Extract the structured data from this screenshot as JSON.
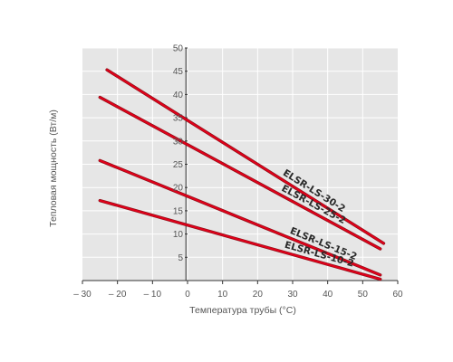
{
  "chart_data": {
    "type": "line",
    "title": "",
    "xlabel": "Температура трубы (°C)",
    "ylabel": "Тепловая мощность (Вт/м)",
    "xlim": [
      -30,
      60
    ],
    "ylim": [
      0,
      50
    ],
    "xticks": [
      -30,
      -20,
      -10,
      0,
      10,
      20,
      30,
      40,
      50,
      60
    ],
    "xtick_labels": [
      "– 30",
      "– 20",
      "– 10",
      "0",
      "10",
      "20",
      "30",
      "40",
      "50",
      "60"
    ],
    "yticks": [
      5,
      10,
      15,
      20,
      25,
      30,
      35,
      40,
      45,
      50
    ],
    "ytick_labels": [
      "5",
      "10",
      "15",
      "20",
      "25",
      "30",
      "35",
      "40",
      "45",
      "50"
    ],
    "grid": true,
    "colors": {
      "plot_background": "#e6e6e6",
      "grid": "#ffffff",
      "axis": "#333333",
      "line": "#e2001a",
      "line_outline": "#8c1018"
    },
    "series": [
      {
        "name": "ELSR-LS-30-2",
        "x": [
          -23,
          56
        ],
        "y": [
          45.3,
          8.0
        ]
      },
      {
        "name": "ELSR-LS-25-2",
        "x": [
          -25,
          55
        ],
        "y": [
          39.4,
          6.8
        ]
      },
      {
        "name": "ELSR-LS-15-2",
        "x": [
          -25,
          55
        ],
        "y": [
          25.8,
          1.2
        ]
      },
      {
        "name": "ELSR-LS-10-2",
        "x": [
          -25,
          55
        ],
        "y": [
          17.2,
          0.3
        ]
      }
    ]
  }
}
